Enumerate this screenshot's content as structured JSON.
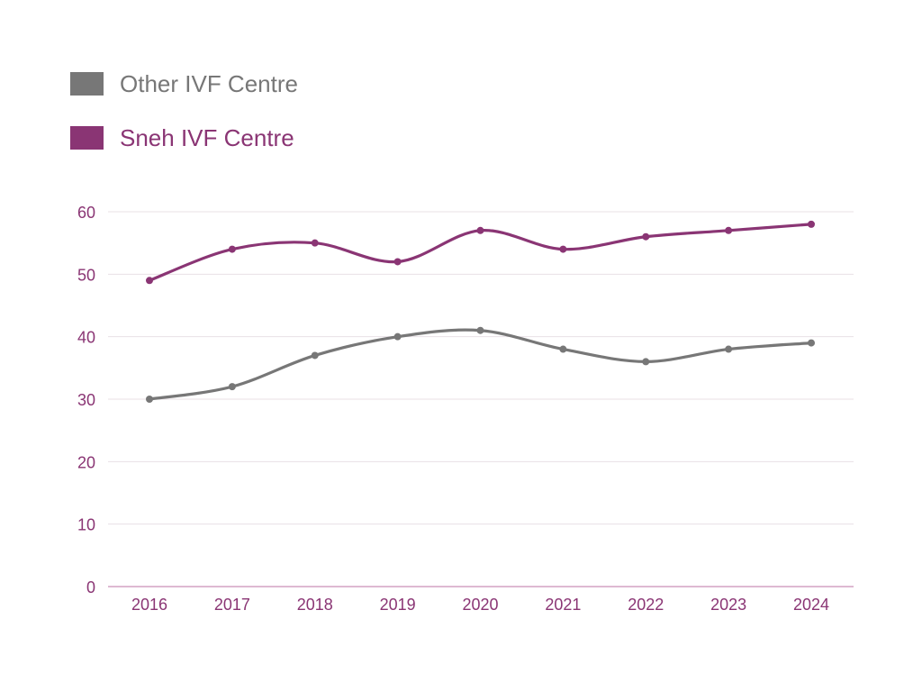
{
  "chart_data": {
    "type": "line",
    "categories": [
      "2016",
      "2017",
      "2018",
      "2019",
      "2020",
      "2021",
      "2022",
      "2023",
      "2024"
    ],
    "series": [
      {
        "name": "Other IVF Centre",
        "color": "#777777",
        "values": [
          30,
          32,
          37,
          40,
          41,
          38,
          36,
          38,
          39
        ]
      },
      {
        "name": "Sneh IVF Centre",
        "color": "#8a3574",
        "values": [
          49,
          54,
          55,
          52,
          57,
          54,
          56,
          57,
          58
        ]
      }
    ],
    "y_ticks": [
      "0",
      "10",
      "20",
      "30",
      "40",
      "50",
      "60"
    ],
    "ylim": [
      0,
      60
    ],
    "grid": true,
    "legend_position": "top-left",
    "axis_color": "#8a3574",
    "grid_color": "#e8e0e6",
    "title": "",
    "xlabel": "",
    "ylabel": ""
  }
}
